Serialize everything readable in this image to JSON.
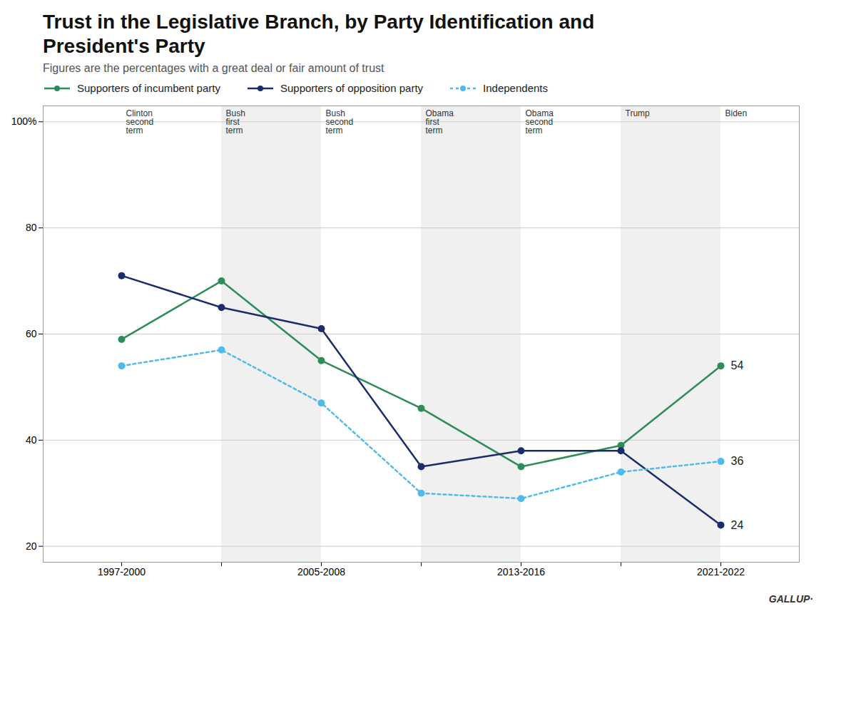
{
  "chart_data": {
    "type": "line",
    "title": "Trust in the Legislative Branch, by Party Identification and\nPresident's Party",
    "subtitle": "Figures are the percentages with a great deal or fair amount of trust",
    "categories": [
      "1997-2000",
      null,
      "2005-2008",
      null,
      "2013-2016",
      null,
      "2021-2022"
    ],
    "series": [
      {
        "name": "Supporters of incumbent party",
        "color": "#2d8c57",
        "values": [
          59,
          70,
          55,
          46,
          35,
          39,
          54
        ],
        "marker": "circle",
        "line_style": "solid"
      },
      {
        "name": "Supporters of opposition party",
        "color": "#1b2c6b",
        "values": [
          71,
          65,
          61,
          35,
          38,
          38,
          24
        ],
        "marker": "circle",
        "line_style": "solid"
      },
      {
        "name": "Independents",
        "color": "#50bbe8",
        "values": [
          54,
          57,
          47,
          30,
          29,
          34,
          36
        ],
        "marker": "circle",
        "line_style": "dashed"
      }
    ],
    "annotations": [
      "Clinton\nsecond\nterm",
      "Bush\nfirst\nterm",
      "Bush\nsecond\nterm",
      "Obama\nfirst\nterm",
      "Obama\nsecond\nterm",
      "Trump",
      "Biden"
    ],
    "caption": "GALLUP·",
    "ylim": [
      17,
      103
    ],
    "yticks": [
      20,
      40,
      60,
      80,
      {
        "value": 100,
        "label": "100%"
      }
    ],
    "grid": true,
    "data_labels": true
  }
}
